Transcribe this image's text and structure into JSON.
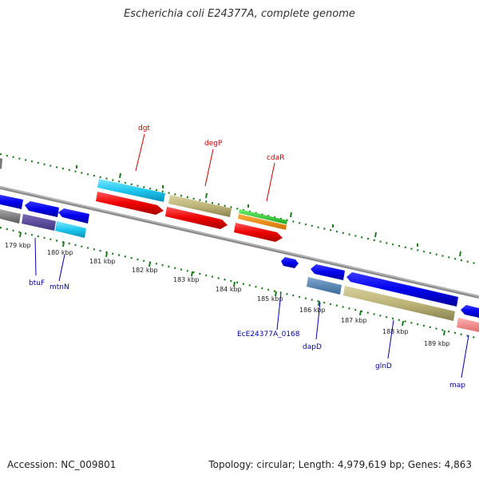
{
  "title": "Escherichia coli E24377A, complete genome",
  "footer": {
    "accession": "Accession: NC_009801",
    "summary": "Topology: circular; Length: 4,979,619 bp; Genes: 4,863"
  },
  "colors": {
    "backbone": "#8c8c8c",
    "tick_dots": "#1f7a1f",
    "label_red": "#cc0000",
    "label_blue": "#0000aa"
  },
  "scale_labels": [
    "179 kbp",
    "180 kbp",
    "181 kbp",
    "182 kbp",
    "183 kbp",
    "184 kbp",
    "185 kbp",
    "186 kbp",
    "187 kbp",
    "188 kbp",
    "189 kbp"
  ],
  "gene_labels": {
    "top": [
      "dgt",
      "degP",
      "cdaR"
    ],
    "bottom": [
      "btuF",
      "mtnN",
      "EcE24377A_0168",
      "dapD",
      "glnD",
      "map"
    ]
  }
}
